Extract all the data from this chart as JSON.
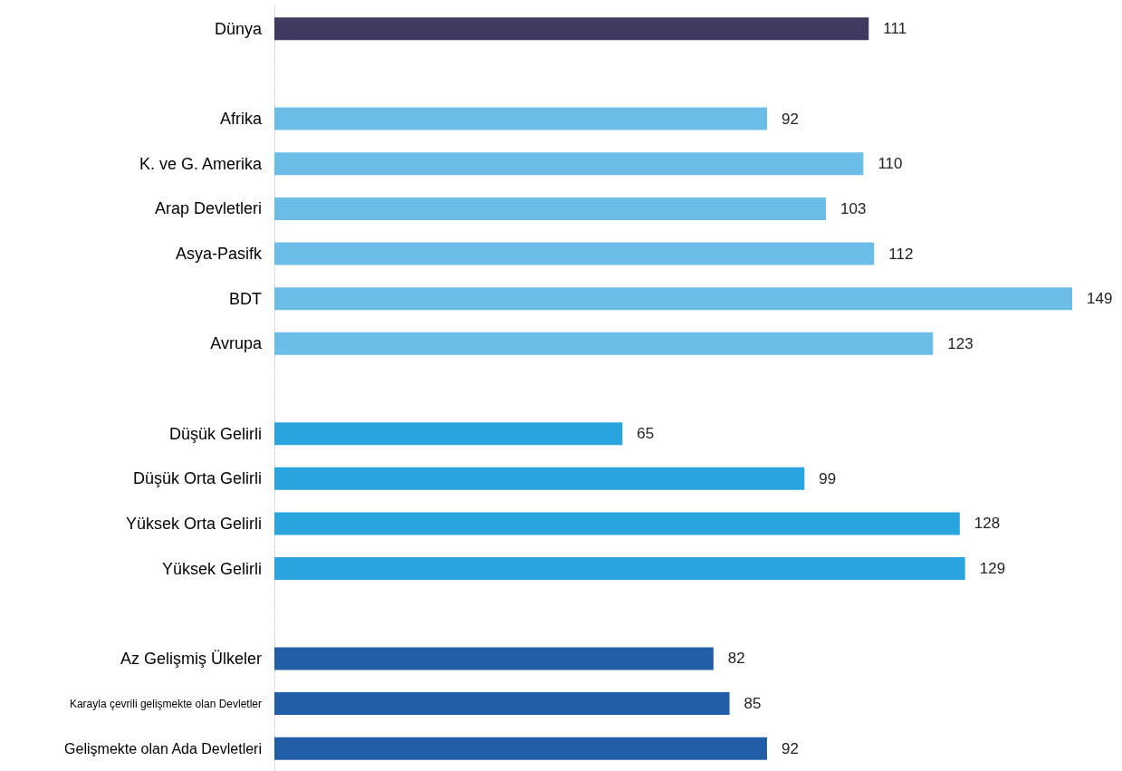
{
  "chart_data": {
    "type": "bar",
    "orientation": "horizontal",
    "data_labels": true,
    "categories": [
      "Dünya",
      null,
      "Afrika",
      "K. ve G. Amerika",
      "Arap Devletleri",
      "Asya-Pasifk",
      "BDT",
      "Avrupa",
      null,
      "Düşük Gelirli",
      "Düşük Orta Gelirli",
      "Yüksek Orta Gelirli",
      "Yüksek Gelirli",
      null,
      "Az Gelişmiş Ülkeler",
      "Karayla çevrili gelişmekte olan Devletler",
      "Gelişmekte olan Ada Devletleri"
    ],
    "values": [
      111,
      null,
      92,
      110,
      103,
      112,
      149,
      123,
      null,
      65,
      99,
      128,
      129,
      null,
      82,
      85,
      92
    ],
    "colors": [
      "#3f3a60",
      null,
      "#6cbce8",
      "#6cbce8",
      "#6cbce8",
      "#6cbce8",
      "#6cbce8",
      "#6cbce8",
      null,
      "#29a4dd",
      "#29a4dd",
      "#29a4dd",
      "#29a4dd",
      null,
      "#225ea8",
      "#225ea8",
      "#225ea8"
    ]
  }
}
